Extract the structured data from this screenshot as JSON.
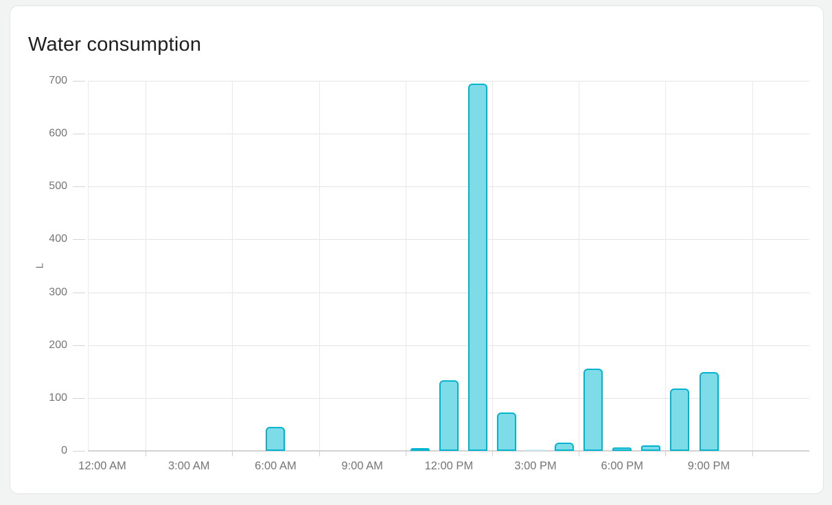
{
  "card": {
    "title": "Water consumption"
  },
  "chart_data": {
    "type": "bar",
    "title": "Water consumption",
    "xlabel": "",
    "ylabel": "L",
    "ylim": [
      0,
      700
    ],
    "y_ticks": [
      0,
      100,
      200,
      300,
      400,
      500,
      600,
      700
    ],
    "x_axis_hours_range": [
      0,
      24
    ],
    "x_tick_labels": [
      "12:00 AM",
      "3:00 AM",
      "6:00 AM",
      "9:00 AM",
      "12:00 PM",
      "3:00 PM",
      "6:00 PM",
      "9:00 PM"
    ],
    "x_tick_label_hours": [
      0,
      3,
      6,
      9,
      12,
      15,
      18,
      21
    ],
    "grid": true,
    "legend": "none",
    "series": [
      {
        "name": "Water consumption",
        "unit": "L",
        "hours": [
          0,
          1,
          2,
          3,
          4,
          5,
          6,
          7,
          8,
          9,
          10,
          11,
          12,
          13,
          14,
          15,
          16,
          17,
          18,
          19,
          20,
          21,
          22,
          23
        ],
        "values": [
          0,
          0,
          0,
          0,
          0,
          0,
          45,
          0,
          0,
          0,
          0,
          5,
          133,
          695,
          73,
          2,
          16,
          155,
          7,
          11,
          118,
          149,
          0,
          0
        ]
      }
    ],
    "colors": {
      "bar_fill": "#7edce8",
      "bar_border": "#00b3ce",
      "grid_line": "#e6e6e6",
      "axis_line": "#d2d2d2",
      "tick_text": "#757575",
      "title_text": "#1e1e1e"
    }
  }
}
